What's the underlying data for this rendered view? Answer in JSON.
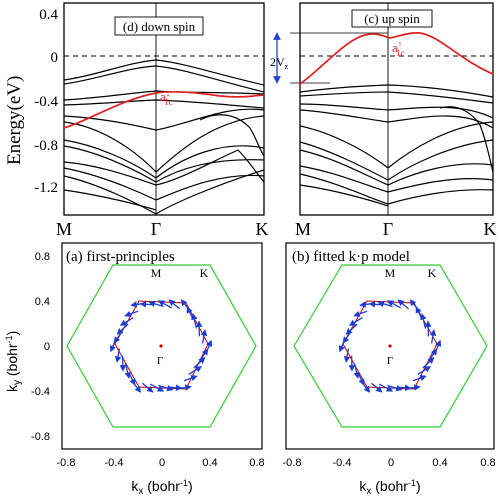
{
  "figure": {
    "band_panels": {
      "y_axis_label": "Energy(eV)",
      "y_ticks": [
        "0.4",
        "0",
        "-0.4",
        "-0.8",
        "-1.2"
      ],
      "k_labels": [
        "M",
        "Γ",
        "K"
      ],
      "left": {
        "title": "(d) down spin",
        "band_label": "a",
        "band_label_sub": "1c",
        "band_label_sup": "↓"
      },
      "right": {
        "title": "(c) up spin",
        "band_label": "a",
        "band_label_sub": "1c",
        "band_label_sup": "↑",
        "gap_label": "2V",
        "gap_label_sub": "z"
      }
    },
    "spin_panels": {
      "left_title": "(a) first-principles",
      "right_title": "(b) fitted k·p model",
      "x_axis_label": "k",
      "x_axis_sub": "x",
      "x_axis_unit": " (bohr",
      "x_axis_unit_sup": "-1",
      "x_axis_unit_end": ")",
      "y_axis_label": "k",
      "y_axis_sub": "y",
      "y_axis_unit": " (bohr",
      "y_axis_unit_sup": "-1",
      "y_axis_unit_end": ")",
      "x_ticks": [
        "-0.8",
        "-0.4",
        "0",
        "0.4",
        "0.8"
      ],
      "y_ticks": [
        "0.8",
        "0.4",
        "0",
        "-0.4",
        "-0.8"
      ],
      "point_labels": [
        "M",
        "K",
        "Γ"
      ]
    }
  },
  "chart_data": [
    {
      "type": "line",
      "title": "(d) down spin",
      "ylabel": "Energy(eV)",
      "ylim": [
        -1.5,
        0.5
      ],
      "x_categories": [
        "M",
        "Γ",
        "K"
      ],
      "highlighted_band": {
        "name": "a1c↓",
        "color": "#e02020",
        "values": [
          -0.65,
          -0.3,
          -0.35
        ]
      }
    },
    {
      "type": "line",
      "title": "(c) up spin",
      "ylim": [
        -1.5,
        0.5
      ],
      "x_categories": [
        "M",
        "Γ",
        "K"
      ],
      "highlighted_band": {
        "name": "a1c↑",
        "color": "#e02020",
        "values": [
          -0.25,
          0.22,
          -0.05
        ]
      }
    },
    {
      "type": "scatter",
      "title": "(a) first-principles",
      "xlim": [
        -0.8,
        0.8
      ],
      "ylim": [
        -0.8,
        0.8
      ],
      "brillouin_zone_color": "#33cc33",
      "fermi_contour_color": "#cc0000",
      "arrow_color": "#1a3dd6",
      "zone_vertex_radius": 0.77,
      "contour_radius": 0.38
    },
    {
      "type": "scatter",
      "title": "(b) fitted k·p model",
      "xlim": [
        -0.8,
        0.8
      ],
      "ylim": [
        -0.8,
        0.8
      ],
      "brillouin_zone_color": "#33cc33",
      "fermi_contour_color": "#cc0000",
      "arrow_color": "#1a3dd6",
      "zone_vertex_radius": 0.77,
      "contour_radius": 0.38
    }
  ]
}
